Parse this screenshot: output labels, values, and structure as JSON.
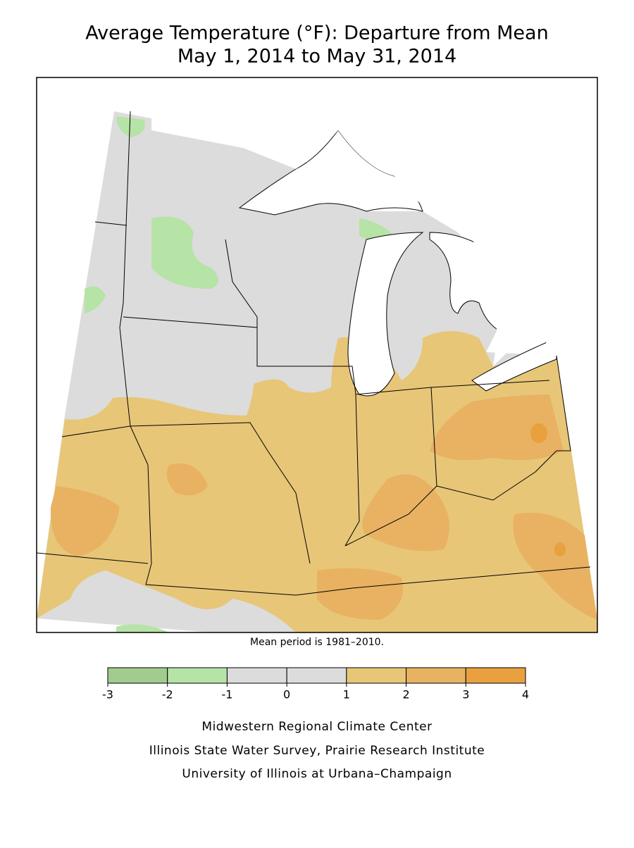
{
  "header": {
    "title": [
      "Average Temperature (°F): Departure from Mean",
      "May 1, 2014 to May 31, 2014"
    ]
  },
  "map": {
    "note": "Mean period is 1981–2010."
  },
  "legend": {
    "bins": [
      -3,
      -2,
      -1,
      0,
      1,
      2,
      3,
      4
    ],
    "colors": [
      "#a2cc8e",
      "#b6e3a6",
      "#dcdcdc",
      "#dcdcdc",
      "#e8c678",
      "#e8b262",
      "#e8a13e"
    ]
  },
  "credits": [
    "Midwestern Regional Climate Center",
    "Illinois State Water Survey, Prairie Research Institute",
    "University of Illinois at Urbana–Champaign"
  ]
}
